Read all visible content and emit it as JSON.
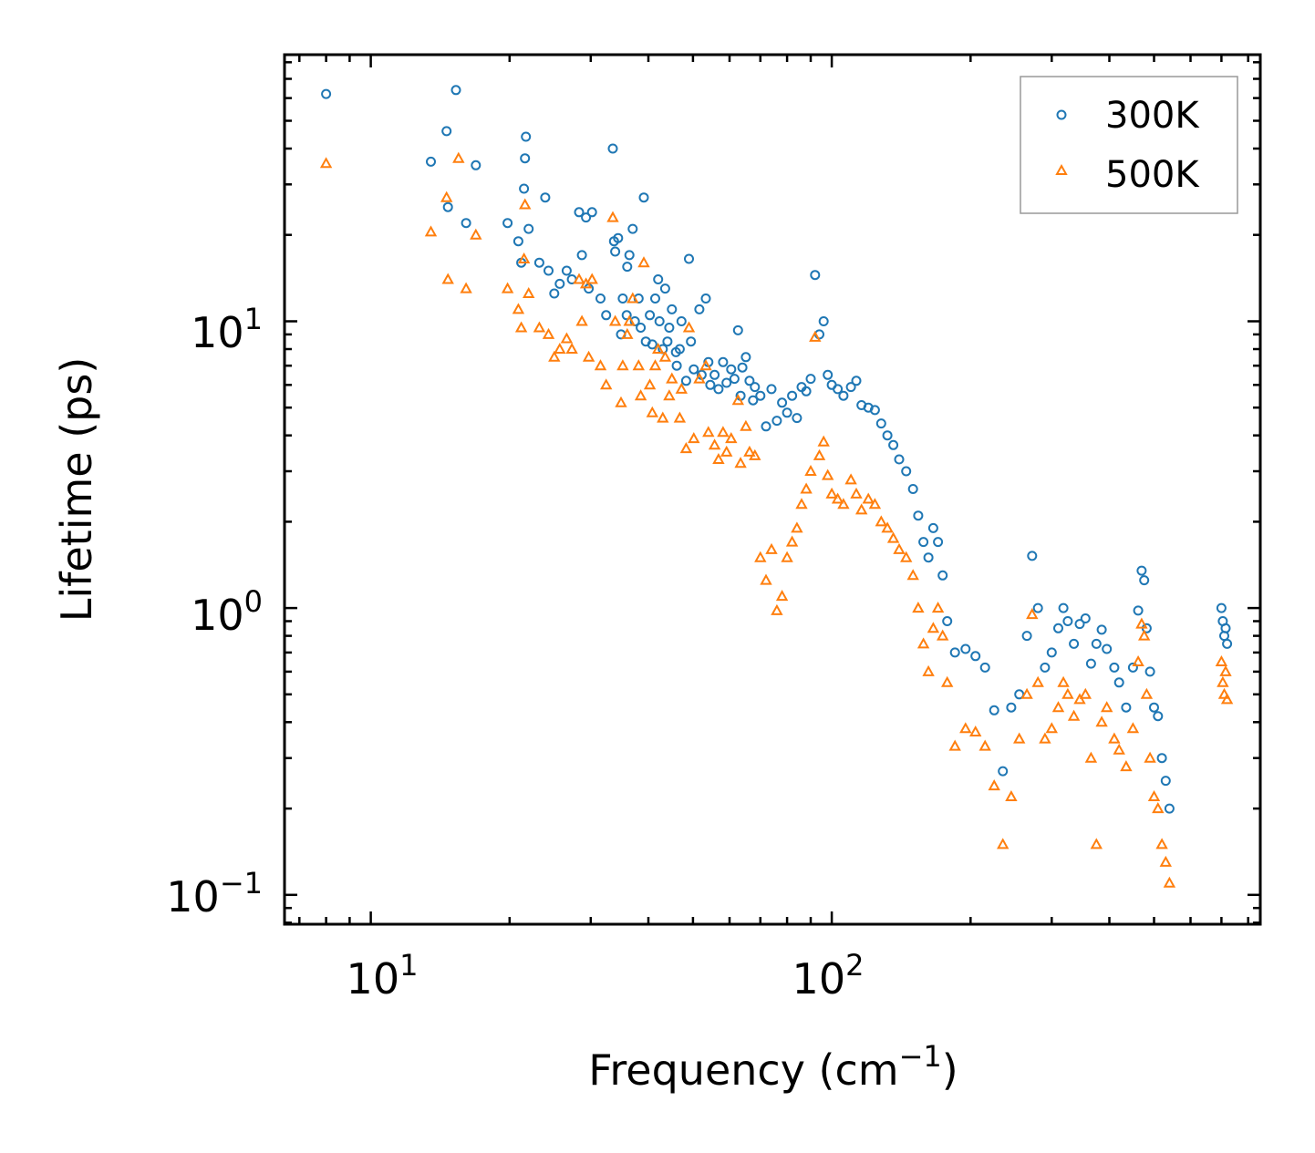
{
  "chart_data": {
    "type": "scatter",
    "title": "",
    "xlabel": "Frequency (cm",
    "xlabel_sup": "−1",
    "xlabel_end": ")",
    "ylabel": "Lifetime (ps)",
    "xscale": "log",
    "yscale": "log",
    "xlim": [
      6.5,
      850
    ],
    "ylim": [
      0.079,
      85
    ],
    "xticks": [
      {
        "value": 10,
        "base": "10",
        "exp": "1"
      },
      {
        "value": 100,
        "base": "10",
        "exp": "2"
      }
    ],
    "yticks": [
      {
        "value": 0.1,
        "base": "10",
        "exp": "−1"
      },
      {
        "value": 1,
        "base": "10",
        "exp": "0"
      },
      {
        "value": 10,
        "base": "10",
        "exp": "1"
      }
    ],
    "legend_position": "top-right",
    "series": [
      {
        "name": "300K",
        "label": "300K",
        "marker": "circle",
        "color": "#1f77b4",
        "points": [
          [
            8.0,
            62
          ],
          [
            15.3,
            64
          ],
          [
            14.6,
            46
          ],
          [
            13.5,
            36
          ],
          [
            14.7,
            25
          ],
          [
            16.1,
            22
          ],
          [
            16.9,
            35
          ],
          [
            19.8,
            22
          ],
          [
            20.9,
            19
          ],
          [
            21.2,
            16
          ],
          [
            21.5,
            29
          ],
          [
            21.6,
            37
          ],
          [
            21.7,
            44
          ],
          [
            22.0,
            21
          ],
          [
            23.2,
            16
          ],
          [
            23.9,
            27
          ],
          [
            24.3,
            15
          ],
          [
            25.0,
            12.5
          ],
          [
            25.7,
            13.5
          ],
          [
            26.6,
            15
          ],
          [
            27.3,
            14
          ],
          [
            28.3,
            24
          ],
          [
            28.7,
            17
          ],
          [
            29.3,
            23
          ],
          [
            29.7,
            13
          ],
          [
            30.2,
            24
          ],
          [
            31.5,
            12
          ],
          [
            32.4,
            10.5
          ],
          [
            33.5,
            40
          ],
          [
            33.7,
            19
          ],
          [
            33.9,
            17.5
          ],
          [
            34.4,
            19.5
          ],
          [
            34.9,
            9
          ],
          [
            35.2,
            12
          ],
          [
            35.9,
            10.5
          ],
          [
            36.0,
            15.5
          ],
          [
            36.4,
            17
          ],
          [
            37.0,
            21
          ],
          [
            37.4,
            10
          ],
          [
            38.1,
            12
          ],
          [
            38.5,
            9.5
          ],
          [
            39.1,
            27
          ],
          [
            39.5,
            8.5
          ],
          [
            40.3,
            10.5
          ],
          [
            40.8,
            8.3
          ],
          [
            41.4,
            12
          ],
          [
            42.0,
            14
          ],
          [
            42.3,
            10
          ],
          [
            43.0,
            8
          ],
          [
            43.5,
            13
          ],
          [
            44.0,
            8.5
          ],
          [
            44.4,
            9.5
          ],
          [
            45.0,
            11
          ],
          [
            45.9,
            7.8
          ],
          [
            46.1,
            7
          ],
          [
            46.8,
            8
          ],
          [
            47.2,
            10
          ],
          [
            48.3,
            6.2
          ],
          [
            49.0,
            16.5
          ],
          [
            49.5,
            8.5
          ],
          [
            50.2,
            6.8
          ],
          [
            51.6,
            11
          ],
          [
            52.2,
            6.5
          ],
          [
            53.3,
            12
          ],
          [
            54.0,
            7.2
          ],
          [
            54.5,
            6
          ],
          [
            55.7,
            6.5
          ],
          [
            56.8,
            5.8
          ],
          [
            58.1,
            7.2
          ],
          [
            59.1,
            6.1
          ],
          [
            60.5,
            6.8
          ],
          [
            61.5,
            6.3
          ],
          [
            62.6,
            9.3
          ],
          [
            63.4,
            5.5
          ],
          [
            64.0,
            6.9
          ],
          [
            65.1,
            7.5
          ],
          [
            66.3,
            6.2
          ],
          [
            67.5,
            5.3
          ],
          [
            68.1,
            5.9
          ],
          [
            70.0,
            5.5
          ],
          [
            72.0,
            4.3
          ],
          [
            74.0,
            5.8
          ],
          [
            76.0,
            4.5
          ],
          [
            78.0,
            5.2
          ],
          [
            80.0,
            4.8
          ],
          [
            82.0,
            5.5
          ],
          [
            84.0,
            4.6
          ],
          [
            86.0,
            5.9
          ],
          [
            88.0,
            5.7
          ],
          [
            90.0,
            6.3
          ],
          [
            92.0,
            14.5
          ],
          [
            94.0,
            9
          ],
          [
            96.0,
            10
          ],
          [
            98.0,
            6.5
          ],
          [
            100.0,
            6.0
          ],
          [
            103.0,
            5.8
          ],
          [
            106.0,
            5.5
          ],
          [
            110.0,
            5.9
          ],
          [
            113.0,
            6.2
          ],
          [
            116.0,
            5.1
          ],
          [
            120.0,
            5.0
          ],
          [
            124.0,
            4.9
          ],
          [
            128.0,
            4.4
          ],
          [
            132.0,
            4.0
          ],
          [
            136.0,
            3.7
          ],
          [
            140.0,
            3.3
          ],
          [
            145.0,
            3.0
          ],
          [
            150.0,
            2.6
          ],
          [
            154.0,
            2.1
          ],
          [
            158.0,
            1.7
          ],
          [
            162.0,
            1.5
          ],
          [
            166.0,
            1.9
          ],
          [
            170.0,
            1.7
          ],
          [
            174.0,
            1.3
          ],
          [
            178.0,
            0.9
          ],
          [
            185.0,
            0.7
          ],
          [
            195.0,
            0.72
          ],
          [
            205.0,
            0.68
          ],
          [
            215.0,
            0.62
          ],
          [
            225.0,
            0.44
          ],
          [
            235.0,
            0.27
          ],
          [
            245.0,
            0.45
          ],
          [
            255.0,
            0.5
          ],
          [
            265.0,
            0.8
          ],
          [
            272.0,
            1.52
          ],
          [
            280.0,
            1.0
          ],
          [
            290.0,
            0.62
          ],
          [
            300.0,
            0.7
          ],
          [
            310.0,
            0.85
          ],
          [
            318.0,
            1.0
          ],
          [
            325.0,
            0.9
          ],
          [
            335.0,
            0.75
          ],
          [
            345.0,
            0.88
          ],
          [
            355.0,
            0.92
          ],
          [
            365.0,
            0.64
          ],
          [
            375.0,
            0.75
          ],
          [
            385.0,
            0.84
          ],
          [
            395.0,
            0.72
          ],
          [
            410.0,
            0.62
          ],
          [
            420.0,
            0.55
          ],
          [
            435.0,
            0.45
          ],
          [
            450.0,
            0.62
          ],
          [
            462.0,
            0.98
          ],
          [
            470.0,
            1.35
          ],
          [
            476.0,
            1.25
          ],
          [
            482.0,
            0.85
          ],
          [
            490.0,
            0.6
          ],
          [
            500.0,
            0.45
          ],
          [
            510.0,
            0.42
          ],
          [
            520.0,
            0.3
          ],
          [
            530.0,
            0.25
          ],
          [
            540.0,
            0.2
          ],
          [
            700.0,
            1.0
          ],
          [
            705.0,
            0.9
          ],
          [
            710.0,
            0.8
          ],
          [
            715.0,
            0.85
          ],
          [
            720.0,
            0.75
          ]
        ]
      },
      {
        "name": "500K",
        "label": "500K",
        "marker": "triangle",
        "color": "#ff7f0e",
        "points": [
          [
            8.0,
            35.5
          ],
          [
            15.5,
            37
          ],
          [
            14.6,
            27
          ],
          [
            13.5,
            20.5
          ],
          [
            14.7,
            14
          ],
          [
            16.1,
            13
          ],
          [
            16.9,
            20
          ],
          [
            19.8,
            13
          ],
          [
            20.9,
            11
          ],
          [
            21.2,
            9.5
          ],
          [
            21.5,
            16.5
          ],
          [
            21.6,
            25.5
          ],
          [
            22.0,
            12.5
          ],
          [
            23.2,
            9.5
          ],
          [
            24.3,
            9
          ],
          [
            25.0,
            7.5
          ],
          [
            25.7,
            8
          ],
          [
            26.6,
            8.7
          ],
          [
            27.3,
            8
          ],
          [
            28.3,
            14
          ],
          [
            28.7,
            10
          ],
          [
            29.3,
            13.5
          ],
          [
            29.7,
            7.5
          ],
          [
            30.2,
            14
          ],
          [
            31.5,
            7
          ],
          [
            32.4,
            6
          ],
          [
            33.5,
            23
          ],
          [
            33.9,
            10
          ],
          [
            34.9,
            5.2
          ],
          [
            35.2,
            7
          ],
          [
            36.0,
            9
          ],
          [
            36.4,
            10
          ],
          [
            37.0,
            12
          ],
          [
            38.1,
            7
          ],
          [
            38.5,
            5.5
          ],
          [
            39.1,
            16
          ],
          [
            40.3,
            6
          ],
          [
            40.8,
            4.8
          ],
          [
            41.4,
            7
          ],
          [
            42.0,
            8
          ],
          [
            43.0,
            4.6
          ],
          [
            43.5,
            7.5
          ],
          [
            44.4,
            5.5
          ],
          [
            45.0,
            6.3
          ],
          [
            46.8,
            4.6
          ],
          [
            47.2,
            5.8
          ],
          [
            48.3,
            3.6
          ],
          [
            49.0,
            9.5
          ],
          [
            50.2,
            3.9
          ],
          [
            51.6,
            6.3
          ],
          [
            53.3,
            7
          ],
          [
            54.0,
            4.1
          ],
          [
            55.7,
            3.7
          ],
          [
            56.8,
            3.3
          ],
          [
            58.1,
            4.1
          ],
          [
            59.1,
            3.5
          ],
          [
            60.5,
            3.9
          ],
          [
            62.6,
            5.3
          ],
          [
            63.4,
            3.2
          ],
          [
            65.1,
            4.3
          ],
          [
            66.3,
            3.5
          ],
          [
            68.1,
            3.4
          ],
          [
            70.0,
            1.5
          ],
          [
            72.0,
            1.25
          ],
          [
            74.0,
            1.6
          ],
          [
            76.0,
            0.98
          ],
          [
            78.0,
            1.1
          ],
          [
            80.0,
            1.5
          ],
          [
            82.0,
            1.7
          ],
          [
            84.0,
            1.9
          ],
          [
            86.0,
            2.3
          ],
          [
            88.0,
            2.6
          ],
          [
            90.0,
            3.0
          ],
          [
            92.0,
            8.8
          ],
          [
            94.0,
            3.4
          ],
          [
            96.0,
            3.8
          ],
          [
            98.0,
            2.9
          ],
          [
            100.0,
            2.5
          ],
          [
            103.0,
            2.4
          ],
          [
            106.0,
            2.3
          ],
          [
            110.0,
            2.8
          ],
          [
            113.0,
            2.5
          ],
          [
            116.0,
            2.2
          ],
          [
            120.0,
            2.4
          ],
          [
            124.0,
            2.3
          ],
          [
            128.0,
            2.0
          ],
          [
            132.0,
            1.9
          ],
          [
            136.0,
            1.75
          ],
          [
            140.0,
            1.6
          ],
          [
            145.0,
            1.5
          ],
          [
            150.0,
            1.3
          ],
          [
            154.0,
            1.0
          ],
          [
            158.0,
            0.75
          ],
          [
            162.0,
            0.6
          ],
          [
            166.0,
            0.85
          ],
          [
            170.0,
            1.0
          ],
          [
            174.0,
            0.8
          ],
          [
            178.0,
            0.55
          ],
          [
            185.0,
            0.33
          ],
          [
            195.0,
            0.38
          ],
          [
            205.0,
            0.37
          ],
          [
            215.0,
            0.33
          ],
          [
            225.0,
            0.24
          ],
          [
            235.0,
            0.15
          ],
          [
            245.0,
            0.22
          ],
          [
            255.0,
            0.35
          ],
          [
            265.0,
            0.5
          ],
          [
            272.0,
            0.95
          ],
          [
            280.0,
            0.55
          ],
          [
            290.0,
            0.35
          ],
          [
            300.0,
            0.38
          ],
          [
            310.0,
            0.45
          ],
          [
            318.0,
            0.55
          ],
          [
            325.0,
            0.5
          ],
          [
            335.0,
            0.42
          ],
          [
            345.0,
            0.48
          ],
          [
            355.0,
            0.5
          ],
          [
            365.0,
            0.3
          ],
          [
            375.0,
            0.15
          ],
          [
            385.0,
            0.4
          ],
          [
            395.0,
            0.45
          ],
          [
            410.0,
            0.35
          ],
          [
            420.0,
            0.32
          ],
          [
            435.0,
            0.28
          ],
          [
            450.0,
            0.38
          ],
          [
            462.0,
            0.65
          ],
          [
            470.0,
            0.88
          ],
          [
            476.0,
            0.8
          ],
          [
            482.0,
            0.5
          ],
          [
            490.0,
            0.3
          ],
          [
            500.0,
            0.22
          ],
          [
            510.0,
            0.2
          ],
          [
            520.0,
            0.15
          ],
          [
            530.0,
            0.13
          ],
          [
            540.0,
            0.11
          ],
          [
            700.0,
            0.65
          ],
          [
            705.0,
            0.55
          ],
          [
            710.0,
            0.5
          ],
          [
            715.0,
            0.6
          ],
          [
            720.0,
            0.48
          ]
        ]
      }
    ]
  }
}
